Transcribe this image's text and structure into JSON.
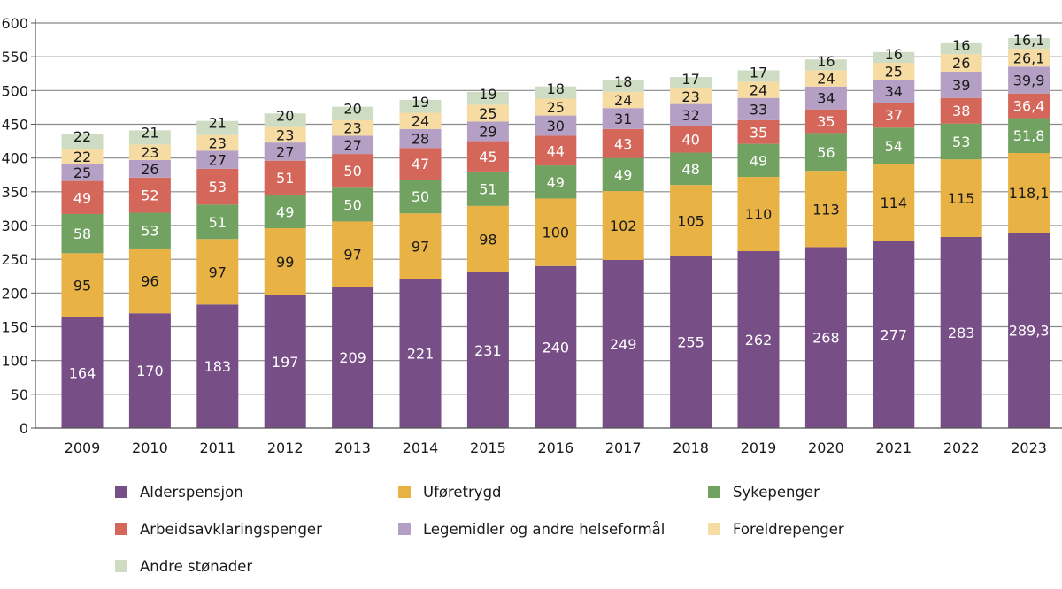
{
  "chart_data": {
    "type": "bar",
    "stacked": true,
    "title": "",
    "xlabel": "",
    "ylabel": "",
    "ylim": [
      0,
      600
    ],
    "yticks": [
      0,
      50,
      100,
      150,
      200,
      250,
      300,
      350,
      400,
      450,
      500,
      550,
      600
    ],
    "grid": true,
    "legend_position": "bottom",
    "categories": [
      "2009",
      "2010",
      "2011",
      "2012",
      "2013",
      "2014",
      "2015",
      "2016",
      "2017",
      "2018",
      "2019",
      "2020",
      "2021",
      "2022",
      "2023"
    ],
    "series": [
      {
        "name": "Alderspensjon",
        "color": "#774e86",
        "label_color": "#ffffff",
        "values": [
          164,
          170,
          183,
          197,
          209,
          221,
          231,
          240,
          249,
          255,
          262,
          268,
          277,
          283,
          289.3
        ]
      },
      {
        "name": "Uføretrygd",
        "color": "#e8b245",
        "label_color": "#1a1a1a",
        "values": [
          95,
          96,
          97,
          99,
          97,
          97,
          98,
          100,
          102,
          105,
          110,
          113,
          114,
          115,
          118.1
        ]
      },
      {
        "name": "Sykepenger",
        "color": "#72a262",
        "label_color": "#ffffff",
        "values": [
          58,
          53,
          51,
          49,
          50,
          50,
          51,
          49,
          49,
          48,
          49,
          56,
          54,
          53,
          51.8
        ]
      },
      {
        "name": "Arbeidsavklaringspenger",
        "color": "#d4665a",
        "label_color": "#ffffff",
        "values": [
          49,
          52,
          53,
          51,
          50,
          47,
          45,
          44,
          43,
          40,
          35,
          35,
          37,
          38,
          36.4
        ]
      },
      {
        "name": "Legemidler og andre helseformål",
        "color": "#b4a0c4",
        "label_color": "#1a1a1a",
        "values": [
          25,
          26,
          27,
          27,
          27,
          28,
          29,
          30,
          31,
          32,
          33,
          34,
          34,
          39,
          39.9
        ]
      },
      {
        "name": "Foreldrepenger",
        "color": "#f6dba3",
        "label_color": "#1a1a1a",
        "values": [
          22,
          23,
          23,
          23,
          23,
          24,
          25,
          25,
          24,
          23,
          24,
          24,
          25,
          26,
          26.1
        ]
      },
      {
        "name": "Andre stønader",
        "color": "#cfdcc4",
        "label_color": "#1a1a1a",
        "values": [
          22,
          21,
          21,
          20,
          20,
          19,
          19,
          18,
          18,
          17,
          17,
          16,
          16,
          16,
          16.1
        ]
      }
    ]
  }
}
